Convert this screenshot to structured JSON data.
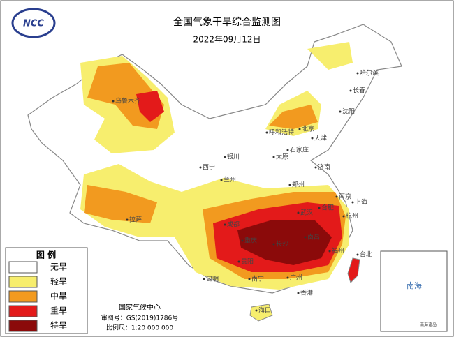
{
  "header": {
    "title": "全国气象干旱综合监测图",
    "date": "2022年09月12日",
    "logo": "NCC"
  },
  "legend": {
    "title": "图 例",
    "items": [
      {
        "label": "无旱",
        "color": "#ffffff"
      },
      {
        "label": "轻旱",
        "color": "#f7ee6e"
      },
      {
        "label": "中旱",
        "color": "#f29a1f"
      },
      {
        "label": "重旱",
        "color": "#e31a1a"
      },
      {
        "label": "特旱",
        "color": "#8b0a0a"
      }
    ]
  },
  "cities": [
    "哈尔滨",
    "长春",
    "沈阳",
    "北京",
    "天津",
    "石家庄",
    "太原",
    "呼和浩特",
    "银川",
    "兰州",
    "西宁",
    "郑州",
    "济南",
    "南京",
    "上海",
    "合肥",
    "武汉",
    "杭州",
    "成都",
    "重庆",
    "长沙",
    "南昌",
    "贵阳",
    "昆明",
    "南宁",
    "广州",
    "香港",
    "海口",
    "拉萨",
    "乌鲁木齐",
    "福州",
    "台北"
  ],
  "inset": {
    "label": "南海",
    "note": "南海诸岛"
  },
  "footer": {
    "org": "国家气候中心",
    "approval": "审图号：GS(2019)1786号",
    "scale": "比例尺：1:20 000 000"
  }
}
